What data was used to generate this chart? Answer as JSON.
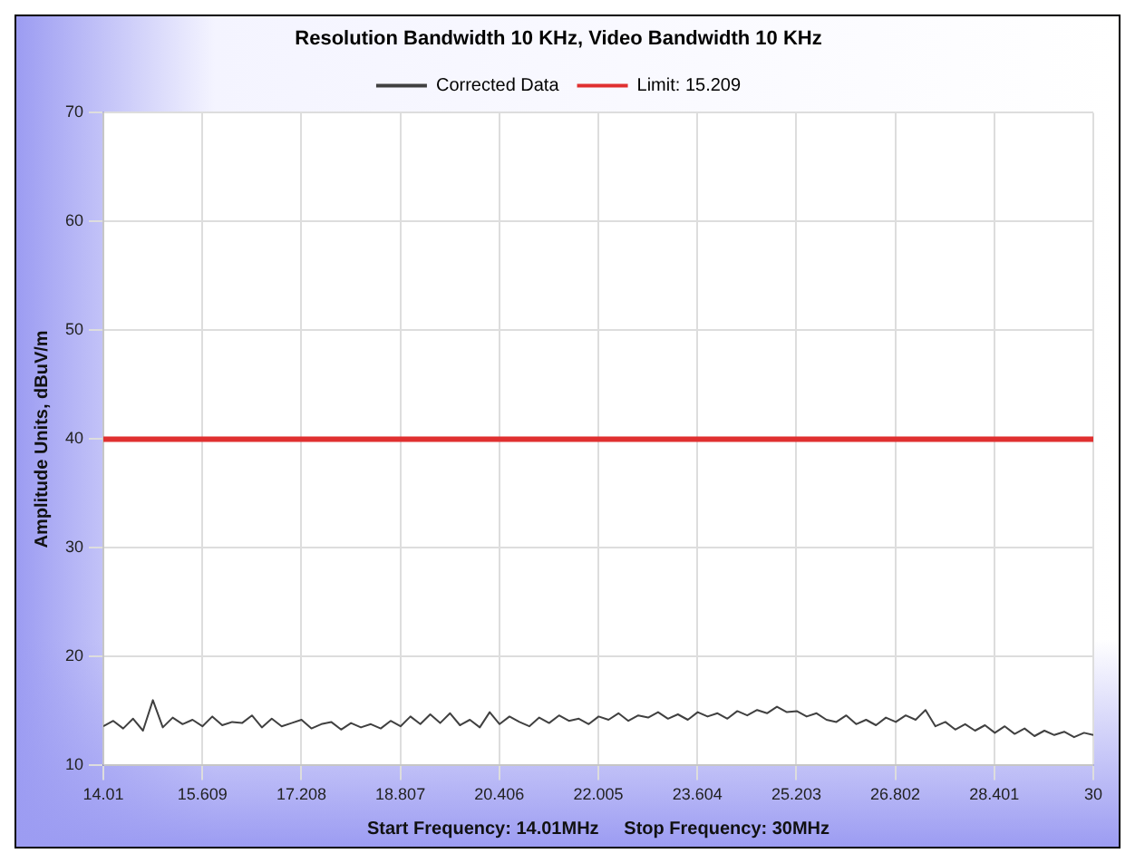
{
  "chart_data": {
    "type": "line",
    "title": "Resolution Bandwidth 10 KHz, Video Bandwidth 10 KHz",
    "xlabel": "Start Frequency: 14.01MHz     Stop Frequency: 30MHz",
    "ylabel": "Amplitude Units, dBuV/m",
    "xlim": [
      14.01,
      30
    ],
    "xticks": [
      14.01,
      15.609,
      17.208,
      18.807,
      20.406,
      22.005,
      23.604,
      25.203,
      26.802,
      28.401,
      30
    ],
    "ylim": [
      10,
      70
    ],
    "yticks": [
      10,
      20,
      30,
      40,
      50,
      60,
      70
    ],
    "grid": true,
    "legend": "top",
    "marker": "none",
    "line_style": "solid",
    "series": [
      {
        "name": "Corrected Data",
        "color": "#404040",
        "x": [
          14.01,
          14.17,
          14.33,
          14.49,
          14.65,
          14.81,
          14.97,
          15.13,
          15.29,
          15.45,
          15.61,
          15.77,
          15.93,
          16.09,
          16.25,
          16.41,
          16.57,
          16.73,
          16.89,
          17.05,
          17.21,
          17.37,
          17.53,
          17.69,
          17.85,
          18.01,
          18.17,
          18.33,
          18.49,
          18.65,
          18.81,
          18.97,
          19.13,
          19.29,
          19.45,
          19.61,
          19.77,
          19.93,
          20.09,
          20.25,
          20.41,
          20.57,
          20.73,
          20.89,
          21.05,
          21.21,
          21.37,
          21.53,
          21.69,
          21.85,
          22.01,
          22.17,
          22.33,
          22.49,
          22.65,
          22.81,
          22.97,
          23.13,
          23.29,
          23.45,
          23.61,
          23.77,
          23.93,
          24.09,
          24.25,
          24.41,
          24.57,
          24.73,
          24.89,
          25.05,
          25.21,
          25.37,
          25.53,
          25.69,
          25.85,
          26.01,
          26.17,
          26.33,
          26.49,
          26.65,
          26.81,
          26.97,
          27.13,
          27.29,
          27.45,
          27.61,
          27.77,
          27.93,
          28.09,
          28.25,
          28.41,
          28.57,
          28.73,
          28.89,
          29.05,
          29.21,
          29.37,
          29.53,
          29.69,
          29.85,
          30
        ],
        "values": [
          13.6,
          14.1,
          13.4,
          14.3,
          13.2,
          16.0,
          13.5,
          14.4,
          13.8,
          14.2,
          13.6,
          14.5,
          13.7,
          14.0,
          13.9,
          14.6,
          13.5,
          14.3,
          13.6,
          13.9,
          14.2,
          13.4,
          13.8,
          14.0,
          13.3,
          13.9,
          13.5,
          13.8,
          13.4,
          14.1,
          13.6,
          14.5,
          13.8,
          14.7,
          13.9,
          14.8,
          13.7,
          14.2,
          13.5,
          14.9,
          13.8,
          14.5,
          14.0,
          13.6,
          14.4,
          13.9,
          14.6,
          14.1,
          14.3,
          13.8,
          14.5,
          14.2,
          14.8,
          14.1,
          14.6,
          14.4,
          14.9,
          14.3,
          14.7,
          14.2,
          14.9,
          14.5,
          14.8,
          14.3,
          15.0,
          14.6,
          15.1,
          14.8,
          15.4,
          14.9,
          15.0,
          14.5,
          14.8,
          14.2,
          14.0,
          14.6,
          13.8,
          14.2,
          13.7,
          14.4,
          14.0,
          14.6,
          14.2,
          15.1,
          13.6,
          14.0,
          13.3,
          13.8,
          13.2,
          13.7,
          13.0,
          13.6,
          12.9,
          13.4,
          12.7,
          13.2,
          12.8,
          13.1,
          12.6,
          13.0,
          12.8
        ]
      },
      {
        "name": "Limit: 15.209",
        "color": "#e03030",
        "x": [
          14.01,
          30
        ],
        "values": [
          40,
          40
        ]
      }
    ]
  }
}
